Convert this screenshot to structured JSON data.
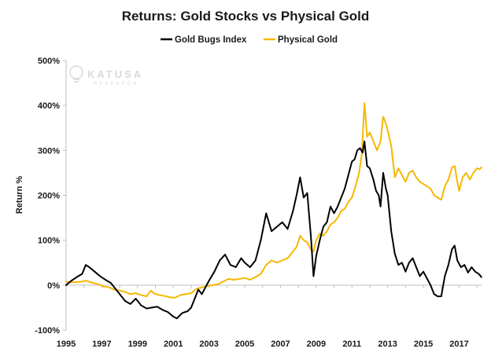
{
  "chart_data": {
    "type": "line",
    "title": "Returns: Gold Stocks vs Physical Gold",
    "ylabel": "Return %",
    "xlabel": "",
    "xlim": [
      1995,
      2018.3
    ],
    "ylim": [
      -100,
      500
    ],
    "x_ticks": [
      "1995",
      "1997",
      "1999",
      "2001",
      "2003",
      "2005",
      "2007",
      "2009",
      "2011",
      "2013",
      "2015",
      "2017"
    ],
    "y_ticks": [
      "-100%",
      "0%",
      "100%",
      "200%",
      "300%",
      "400%",
      "500%"
    ],
    "grid": false,
    "legend_position": "top-center",
    "watermark": {
      "brand": "KATUSA",
      "sub": "RESEARCH"
    },
    "series": [
      {
        "name": "Gold Bugs Index",
        "color": "#000000",
        "points": [
          [
            1995.0,
            0
          ],
          [
            1995.3,
            10
          ],
          [
            1995.6,
            18
          ],
          [
            1995.9,
            25
          ],
          [
            1996.1,
            45
          ],
          [
            1996.3,
            40
          ],
          [
            1996.6,
            30
          ],
          [
            1996.9,
            20
          ],
          [
            1997.2,
            12
          ],
          [
            1997.5,
            5
          ],
          [
            1997.8,
            -10
          ],
          [
            1998.0,
            -20
          ],
          [
            1998.3,
            -35
          ],
          [
            1998.6,
            -42
          ],
          [
            1998.9,
            -30
          ],
          [
            1999.2,
            -45
          ],
          [
            1999.5,
            -52
          ],
          [
            1999.8,
            -50
          ],
          [
            2000.1,
            -48
          ],
          [
            2000.4,
            -55
          ],
          [
            2000.7,
            -60
          ],
          [
            2001.0,
            -70
          ],
          [
            2001.2,
            -74
          ],
          [
            2001.5,
            -62
          ],
          [
            2001.8,
            -58
          ],
          [
            2002.0,
            -50
          ],
          [
            2002.2,
            -30
          ],
          [
            2002.4,
            -10
          ],
          [
            2002.6,
            -20
          ],
          [
            2002.8,
            -5
          ],
          [
            2003.0,
            10
          ],
          [
            2003.3,
            30
          ],
          [
            2003.6,
            55
          ],
          [
            2003.9,
            68
          ],
          [
            2004.2,
            45
          ],
          [
            2004.5,
            40
          ],
          [
            2004.8,
            60
          ],
          [
            2005.0,
            50
          ],
          [
            2005.3,
            40
          ],
          [
            2005.6,
            55
          ],
          [
            2005.9,
            100
          ],
          [
            2006.2,
            160
          ],
          [
            2006.5,
            120
          ],
          [
            2006.8,
            130
          ],
          [
            2007.1,
            140
          ],
          [
            2007.4,
            125
          ],
          [
            2007.7,
            165
          ],
          [
            2007.9,
            200
          ],
          [
            2008.1,
            240
          ],
          [
            2008.3,
            195
          ],
          [
            2008.5,
            205
          ],
          [
            2008.7,
            110
          ],
          [
            2008.85,
            20
          ],
          [
            2009.0,
            65
          ],
          [
            2009.2,
            100
          ],
          [
            2009.4,
            130
          ],
          [
            2009.6,
            140
          ],
          [
            2009.8,
            175
          ],
          [
            2010.0,
            160
          ],
          [
            2010.2,
            175
          ],
          [
            2010.4,
            195
          ],
          [
            2010.6,
            215
          ],
          [
            2010.8,
            245
          ],
          [
            2011.0,
            275
          ],
          [
            2011.15,
            280
          ],
          [
            2011.3,
            300
          ],
          [
            2011.45,
            305
          ],
          [
            2011.6,
            295
          ],
          [
            2011.7,
            320
          ],
          [
            2011.85,
            265
          ],
          [
            2012.0,
            260
          ],
          [
            2012.2,
            235
          ],
          [
            2012.35,
            210
          ],
          [
            2012.5,
            200
          ],
          [
            2012.6,
            175
          ],
          [
            2012.75,
            250
          ],
          [
            2012.9,
            215
          ],
          [
            2013.0,
            200
          ],
          [
            2013.2,
            120
          ],
          [
            2013.4,
            70
          ],
          [
            2013.6,
            45
          ],
          [
            2013.8,
            50
          ],
          [
            2014.0,
            30
          ],
          [
            2014.2,
            50
          ],
          [
            2014.4,
            60
          ],
          [
            2014.6,
            40
          ],
          [
            2014.8,
            20
          ],
          [
            2015.0,
            30
          ],
          [
            2015.2,
            15
          ],
          [
            2015.4,
            0
          ],
          [
            2015.6,
            -20
          ],
          [
            2015.8,
            -25
          ],
          [
            2016.0,
            -25
          ],
          [
            2016.2,
            20
          ],
          [
            2016.4,
            45
          ],
          [
            2016.6,
            80
          ],
          [
            2016.75,
            88
          ],
          [
            2016.9,
            55
          ],
          [
            2017.1,
            40
          ],
          [
            2017.3,
            45
          ],
          [
            2017.5,
            28
          ],
          [
            2017.7,
            40
          ],
          [
            2017.9,
            30
          ],
          [
            2018.1,
            25
          ],
          [
            2018.25,
            18
          ]
        ]
      },
      {
        "name": "Physical Gold",
        "color": "#F5B800",
        "points": [
          [
            1995.0,
            8
          ],
          [
            1995.3,
            6
          ],
          [
            1995.6,
            7
          ],
          [
            1995.9,
            8
          ],
          [
            1996.1,
            10
          ],
          [
            1996.4,
            6
          ],
          [
            1996.8,
            2
          ],
          [
            1997.1,
            -3
          ],
          [
            1997.4,
            -5
          ],
          [
            1997.7,
            -10
          ],
          [
            1998.0,
            -12
          ],
          [
            1998.3,
            -15
          ],
          [
            1998.6,
            -20
          ],
          [
            1998.9,
            -18
          ],
          [
            1999.2,
            -22
          ],
          [
            1999.5,
            -25
          ],
          [
            1999.75,
            -12
          ],
          [
            1999.9,
            -18
          ],
          [
            2000.2,
            -22
          ],
          [
            2000.5,
            -24
          ],
          [
            2000.8,
            -27
          ],
          [
            2001.1,
            -28
          ],
          [
            2001.4,
            -22
          ],
          [
            2001.7,
            -20
          ],
          [
            2002.0,
            -18
          ],
          [
            2002.3,
            -8
          ],
          [
            2002.6,
            -5
          ],
          [
            2002.9,
            -2
          ],
          [
            2003.2,
            0
          ],
          [
            2003.5,
            2
          ],
          [
            2003.8,
            8
          ],
          [
            2004.1,
            14
          ],
          [
            2004.4,
            12
          ],
          [
            2004.7,
            14
          ],
          [
            2005.0,
            16
          ],
          [
            2005.3,
            12
          ],
          [
            2005.6,
            18
          ],
          [
            2005.9,
            25
          ],
          [
            2006.2,
            45
          ],
          [
            2006.5,
            55
          ],
          [
            2006.8,
            50
          ],
          [
            2007.1,
            55
          ],
          [
            2007.4,
            60
          ],
          [
            2007.7,
            75
          ],
          [
            2007.9,
            85
          ],
          [
            2008.1,
            110
          ],
          [
            2008.3,
            100
          ],
          [
            2008.5,
            95
          ],
          [
            2008.7,
            80
          ],
          [
            2008.85,
            75
          ],
          [
            2009.0,
            100
          ],
          [
            2009.2,
            115
          ],
          [
            2009.4,
            110
          ],
          [
            2009.6,
            120
          ],
          [
            2009.8,
            135
          ],
          [
            2010.0,
            140
          ],
          [
            2010.2,
            150
          ],
          [
            2010.4,
            165
          ],
          [
            2010.6,
            170
          ],
          [
            2010.8,
            185
          ],
          [
            2011.0,
            195
          ],
          [
            2011.2,
            220
          ],
          [
            2011.4,
            250
          ],
          [
            2011.55,
            290
          ],
          [
            2011.7,
            405
          ],
          [
            2011.85,
            330
          ],
          [
            2012.0,
            340
          ],
          [
            2012.2,
            320
          ],
          [
            2012.4,
            300
          ],
          [
            2012.6,
            320
          ],
          [
            2012.75,
            375
          ],
          [
            2012.9,
            360
          ],
          [
            2013.0,
            345
          ],
          [
            2013.2,
            310
          ],
          [
            2013.4,
            240
          ],
          [
            2013.6,
            260
          ],
          [
            2013.8,
            245
          ],
          [
            2014.0,
            230
          ],
          [
            2014.2,
            250
          ],
          [
            2014.4,
            255
          ],
          [
            2014.6,
            240
          ],
          [
            2014.8,
            230
          ],
          [
            2015.0,
            225
          ],
          [
            2015.2,
            220
          ],
          [
            2015.4,
            215
          ],
          [
            2015.6,
            200
          ],
          [
            2015.8,
            195
          ],
          [
            2016.0,
            190
          ],
          [
            2016.2,
            220
          ],
          [
            2016.4,
            235
          ],
          [
            2016.6,
            262
          ],
          [
            2016.75,
            265
          ],
          [
            2016.9,
            230
          ],
          [
            2017.0,
            210
          ],
          [
            2017.2,
            240
          ],
          [
            2017.4,
            250
          ],
          [
            2017.6,
            235
          ],
          [
            2017.8,
            250
          ],
          [
            2018.0,
            260
          ],
          [
            2018.15,
            258
          ],
          [
            2018.25,
            262
          ]
        ]
      }
    ]
  }
}
